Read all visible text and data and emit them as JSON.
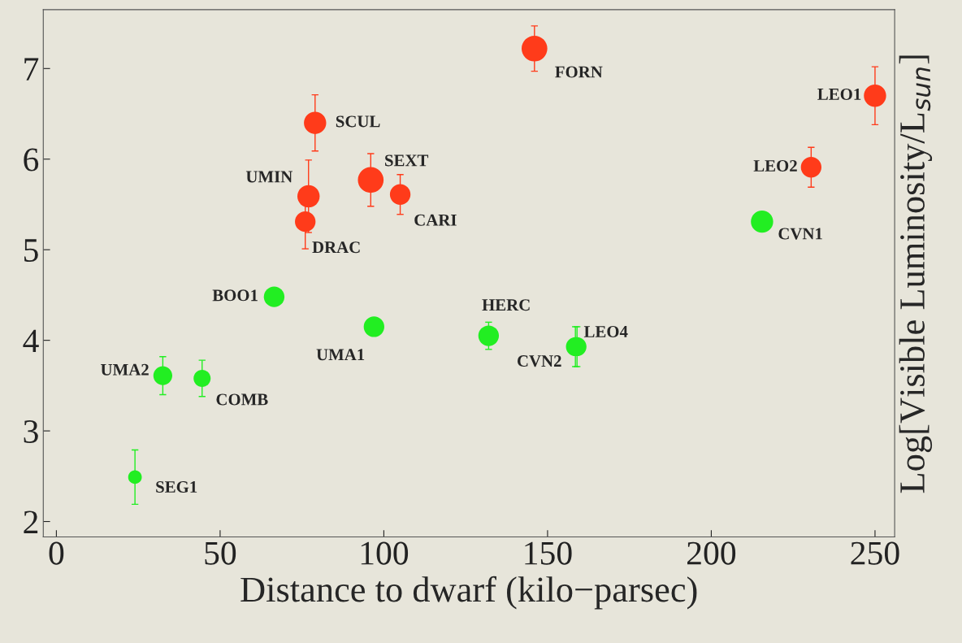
{
  "chart_data": {
    "type": "bubble",
    "xlabel": "Distance to dwarf (kilo−parsec)",
    "ylabel": "Log[Visible Luminosity/L$_{sun}$]",
    "xlim": [
      -4,
      256
    ],
    "ylim": [
      1.83,
      7.65
    ],
    "xticks": [
      0,
      50,
      100,
      150,
      200,
      250
    ],
    "yticks": [
      2,
      3,
      4,
      5,
      6,
      7
    ],
    "grid": false,
    "legend": false,
    "series": [
      {
        "color": "#ff3b1a",
        "x": [
          146,
          250,
          79,
          96,
          105,
          77,
          76,
          230.5
        ],
        "values": [
          7.22,
          6.7,
          6.4,
          5.77,
          5.61,
          5.59,
          5.31,
          5.91
        ],
        "errors": [
          0.25,
          0.32,
          0.31,
          0.29,
          0.22,
          0.4,
          0.3,
          0.22
        ],
        "sizes": [
          1,
          0.75,
          0.75,
          1,
          0.64,
          0.75,
          0.64,
          0.64
        ]
      },
      {
        "color": "#22ee22",
        "x": [
          215.5,
          66.5,
          97,
          132,
          158.5,
          159,
          32.5,
          44.5,
          24
        ],
        "values": [
          5.31,
          4.48,
          4.15,
          4.05,
          3.93,
          3.93,
          3.61,
          3.58,
          2.49
        ],
        "errors": [
          null,
          null,
          null,
          0.15,
          0.22,
          0.22,
          0.21,
          0.2,
          0.3
        ],
        "sizes": [
          0.75,
          0.64,
          0.64,
          0.64,
          0.54,
          0.54,
          0.54,
          0.44,
          0.28
        ]
      }
    ],
    "annotations": [
      {
        "text": "FORN",
        "x": 146,
        "y": 7.22
      },
      {
        "text": "LEO1",
        "x": 250,
        "y": 6.7
      },
      {
        "text": "SCUL",
        "x": 79,
        "y": 6.4
      },
      {
        "text": "SEXT",
        "x": 96,
        "y": 5.77
      },
      {
        "text": "CARI",
        "x": 105,
        "y": 5.61
      },
      {
        "text": "UMIN",
        "x": 77,
        "y": 5.59
      },
      {
        "text": "DRAC",
        "x": 76,
        "y": 5.31
      },
      {
        "text": "LEO2",
        "x": 230.5,
        "y": 5.91
      },
      {
        "text": "CVN1",
        "x": 215.5,
        "y": 5.31
      },
      {
        "text": "BOO1",
        "x": 66.5,
        "y": 4.48
      },
      {
        "text": "UMA1",
        "x": 97,
        "y": 4.15
      },
      {
        "text": "HERC",
        "x": 132,
        "y": 4.05
      },
      {
        "text": "CVN2",
        "x": 158.5,
        "y": 3.93
      },
      {
        "text": "LEO4",
        "x": 159,
        "y": 3.93
      },
      {
        "text": "UMA2",
        "x": 32.5,
        "y": 3.61
      },
      {
        "text": "COMB",
        "x": 44.5,
        "y": 3.58
      },
      {
        "text": "SEG1",
        "x": 24,
        "y": 2.49
      }
    ]
  }
}
